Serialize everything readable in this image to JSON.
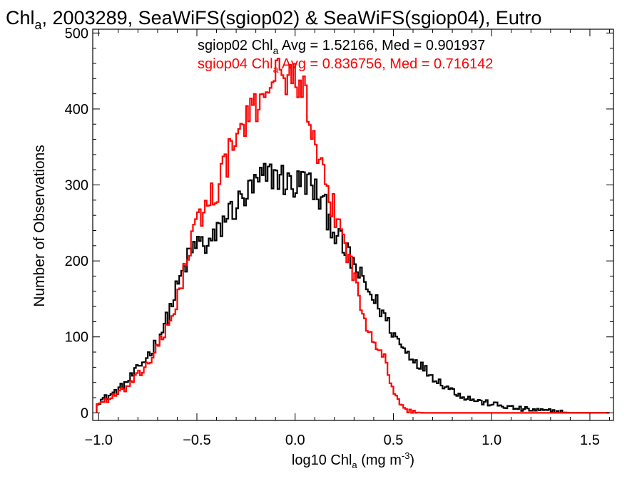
{
  "chart_data": {
    "type": "line",
    "title": {
      "prefix": "Chl",
      "subscript": "a",
      "rest": ", 2003289, SeaWiFS(sgiop02) & SeaWiFS(sgiop04), Eutro"
    },
    "xlabel": {
      "prefix": "log10 Chl",
      "subscript": "a",
      "middle": " (mg m",
      "superscript": "-3",
      "suffix": ")"
    },
    "ylabel": "Number of Observations",
    "xlim": [
      -1.03,
      1.62
    ],
    "ylim": [
      -10,
      505
    ],
    "x_ticks": [
      -1.0,
      -0.5,
      0.0,
      0.5,
      1.0,
      1.5
    ],
    "x_tick_labels": [
      "−1.0",
      "−0.5",
      "0.0",
      "0.5",
      "1.0",
      "1.5"
    ],
    "y_ticks": [
      0,
      100,
      200,
      300,
      400,
      500
    ],
    "y_tick_labels": [
      "0",
      "100",
      "200",
      "300",
      "400",
      "500"
    ],
    "grid": false,
    "legend_position": "top-right",
    "series": [
      {
        "name": "sgiop02",
        "color": "#000000",
        "legend": {
          "prefix": "sgiop02 Chl",
          "subscript": "a",
          "suffix": " Avg = 1.52166, Med = 0.901937"
        },
        "x": [
          -1.0,
          -0.95,
          -0.9,
          -0.85,
          -0.8,
          -0.75,
          -0.7,
          -0.65,
          -0.6,
          -0.55,
          -0.5,
          -0.45,
          -0.4,
          -0.35,
          -0.3,
          -0.25,
          -0.2,
          -0.15,
          -0.1,
          -0.05,
          0.0,
          0.05,
          0.1,
          0.15,
          0.2,
          0.25,
          0.3,
          0.35,
          0.4,
          0.45,
          0.5,
          0.55,
          0.6,
          0.65,
          0.7,
          0.75,
          0.8,
          0.85,
          0.9,
          0.95,
          1.0,
          1.05,
          1.1,
          1.15,
          1.2,
          1.25,
          1.3,
          1.35,
          1.4,
          1.45,
          1.5,
          1.55,
          1.6
        ],
        "values": [
          15,
          22,
          30,
          42,
          58,
          75,
          95,
          125,
          165,
          200,
          225,
          220,
          232,
          260,
          272,
          285,
          300,
          310,
          315,
          305,
          298,
          308,
          292,
          270,
          240,
          215,
          195,
          170,
          150,
          130,
          105,
          85,
          72,
          60,
          48,
          38,
          30,
          22,
          18,
          14,
          12,
          9,
          7,
          5,
          4,
          3,
          2,
          1,
          0,
          0,
          0,
          0,
          0
        ]
      },
      {
        "name": "sgiop04",
        "color": "#ff0000",
        "legend": {
          "prefix": "sgiop04 Chl",
          "subscript": "a",
          "suffix": " Avg = 0.836756, Med = 0.716142"
        },
        "x": [
          -1.0,
          -0.95,
          -0.9,
          -0.85,
          -0.8,
          -0.75,
          -0.7,
          -0.65,
          -0.6,
          -0.55,
          -0.5,
          -0.45,
          -0.4,
          -0.35,
          -0.3,
          -0.25,
          -0.2,
          -0.15,
          -0.1,
          -0.05,
          0.0,
          0.05,
          0.1,
          0.15,
          0.2,
          0.25,
          0.3,
          0.35,
          0.4,
          0.45,
          0.5,
          0.55,
          0.6,
          0.65,
          0.7,
          0.75,
          0.8,
          0.85,
          0.9,
          0.95,
          1.0,
          1.05,
          1.1,
          1.15,
          1.2,
          1.25,
          1.3,
          1.35,
          1.4,
          1.45,
          1.5,
          1.55,
          1.6
        ],
        "values": [
          12,
          18,
          25,
          35,
          48,
          65,
          85,
          110,
          150,
          200,
          250,
          275,
          295,
          330,
          360,
          385,
          400,
          430,
          450,
          440,
          445,
          420,
          345,
          300,
          265,
          230,
          180,
          125,
          100,
          75,
          30,
          5,
          1,
          0,
          0,
          0,
          0,
          0,
          0,
          0,
          0,
          0,
          0,
          0,
          0,
          0,
          0,
          0,
          0,
          0,
          0,
          0,
          0
        ]
      }
    ]
  }
}
